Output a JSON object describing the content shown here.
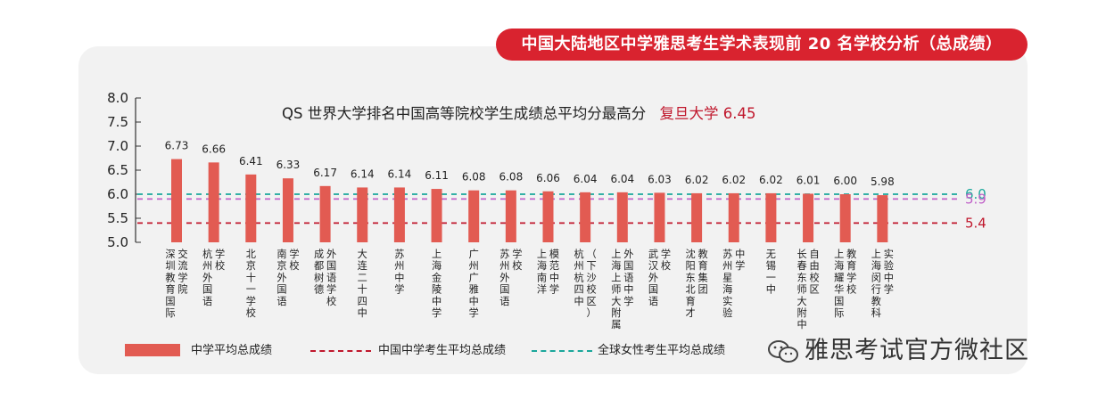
{
  "header": {
    "title": "中国大陆地区中学雅思考生学术表现前 20 名学校分析（总成绩）"
  },
  "colors": {
    "accent_red": "#d9232f",
    "bar": "#e25b52",
    "china_line": "#c0172c",
    "global_female_line": "#1aa79b",
    "purple_line": "#c060c8"
  },
  "annotation": {
    "prefix": "QS 世界大学排名中国高等院校学生成绩总平均分最高分",
    "highlight": "复旦大学 6.45"
  },
  "legend": {
    "items": [
      {
        "label": "中学平均总成绩",
        "icon": "bar-swatch-icon"
      },
      {
        "label": "中国中学考生平均总成绩",
        "icon": "red-dashed-line-icon"
      },
      {
        "label": "全球女性考生平均总成绩",
        "icon": "teal-dashed-line-icon"
      }
    ]
  },
  "watermark": {
    "text": "雅思考试官方微社区",
    "icon": "wechat-icon"
  },
  "chart_data": {
    "type": "bar",
    "title": "中国大陆地区中学雅思考生学术表现前 20 名学校分析（总成绩）",
    "ylim": [
      5.0,
      8.0
    ],
    "yticks": [
      "5.0",
      "5.5",
      "6.0",
      "6.5",
      "7.0",
      "7.5",
      "8.0"
    ],
    "grid": false,
    "legend_position": "bottom-left",
    "categories": [
      "深圳教育国际交流学院",
      "杭州外国语学校",
      "北京十一学校",
      "南京外国语学校",
      "成都树德外国语学校",
      "大连二十四中",
      "苏州中学",
      "上海金陵中学",
      "广州广雅中学",
      "苏州外国语学校",
      "上海南洋模范中学",
      "杭州杭四中（下沙校区）",
      "上海上师大附属外国语中学",
      "武汉外国语学校",
      "沈阳东北育才教育集团",
      "苏州星海实验中学",
      "无锡一中",
      "长春东师大附中自由校区",
      "上海耀华国际教育学校",
      "上海闵行教科实验中学"
    ],
    "category_label_columns": [
      [
        "深圳教育国际",
        "交流学院"
      ],
      [
        "杭州外国语",
        "学校"
      ],
      [
        "北京十一学校"
      ],
      [
        "南京外国语",
        "学校"
      ],
      [
        "成都树德",
        "外国语学校"
      ],
      [
        "大连二十四中"
      ],
      [
        "苏州中学"
      ],
      [
        "上海金陵中学"
      ],
      [
        "广州广雅中学"
      ],
      [
        "苏州外国语",
        "学校"
      ],
      [
        "上海南洋",
        "模范中学"
      ],
      [
        "杭州杭四中",
        "（下沙校区）"
      ],
      [
        "上海上师大附属",
        "外国语中学"
      ],
      [
        "武汉外国语",
        "学校"
      ],
      [
        "沈阳东北育才",
        "教育集团"
      ],
      [
        "苏州星海实验",
        "中学"
      ],
      [
        "无锡一中"
      ],
      [
        "长春东师大附中",
        "自由校区"
      ],
      [
        "上海耀华国际",
        "教育学校"
      ],
      [
        "上海闵行教科",
        "实验中学"
      ]
    ],
    "series": [
      {
        "name": "中学平均总成绩",
        "values": [
          6.73,
          6.66,
          6.41,
          6.33,
          6.17,
          6.14,
          6.14,
          6.11,
          6.08,
          6.08,
          6.06,
          6.04,
          6.04,
          6.03,
          6.02,
          6.02,
          6.02,
          6.01,
          6.0,
          5.98
        ],
        "value_labels": [
          "6.73",
          "6.66",
          "6.41",
          "6.33",
          "6.17",
          "6.14",
          "6.14",
          "6.11",
          "6.08",
          "6.08",
          "6.06",
          "6.04",
          "6.04",
          "6.03",
          "6.02",
          "6.02",
          "6.02",
          "6.01",
          "6.00",
          "5.98"
        ]
      }
    ],
    "reference_lines": [
      {
        "name": "全球女性考生平均总成绩",
        "value": 6.0,
        "label": "6.0",
        "color": "#1aa79b"
      },
      {
        "value": 5.9,
        "label": "5.9",
        "color": "#c060c8"
      },
      {
        "name": "中国中学考生平均总成绩",
        "value": 5.4,
        "label": "5.4",
        "color": "#c0172c"
      }
    ]
  }
}
